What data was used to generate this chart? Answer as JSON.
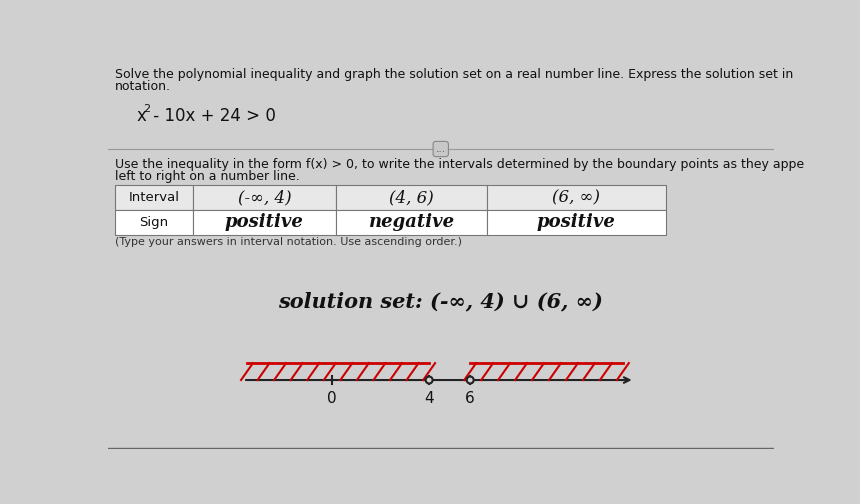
{
  "bg_color": "#d0d0d0",
  "title_text1": "Solve the polynomial inequality and graph the solution set on a real number line. Express the solution set in",
  "title_text2": "notation.",
  "instruction1": "Use the inequality in the form f(x) > 0, to write the intervals determined by the boundary points as they appe",
  "instruction2": "left to right on a number line.",
  "table_intervals": [
    "(-∞, 4)",
    "(4, 6)",
    "(6, ∞)"
  ],
  "table_signs": [
    "positive",
    "negative",
    "positive"
  ],
  "footnote": "(Type your answers in interval notation. Use ascending order.)",
  "solution_text": "solution set: (-∞, 4) ∪ (6, ∞)",
  "dots_button_text": "...",
  "title_fontsize": 9.0,
  "instruction_fontsize": 9.0,
  "table_header_fontsize": 9.5,
  "table_interval_fontsize": 12,
  "table_sign_fontsize": 13,
  "solution_fontsize": 15,
  "numberline_fontsize": 11,
  "footnote_fontsize": 8.0
}
